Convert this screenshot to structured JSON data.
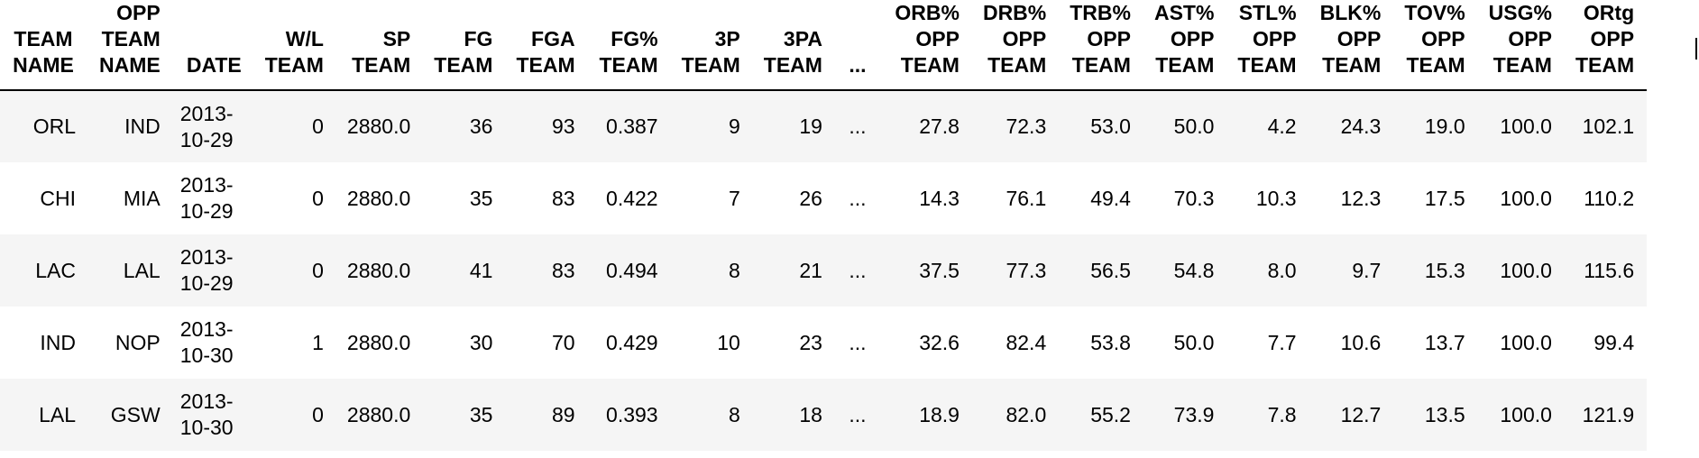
{
  "table": {
    "headers": [
      [
        "TEAM",
        "NAME"
      ],
      [
        "OPP",
        "TEAM",
        "NAME"
      ],
      [
        "DATE"
      ],
      [
        "W/L",
        "TEAM"
      ],
      [
        "SP",
        "TEAM"
      ],
      [
        "FG",
        "TEAM"
      ],
      [
        "FGA",
        "TEAM"
      ],
      [
        "FG%",
        "TEAM"
      ],
      [
        "3P",
        "TEAM"
      ],
      [
        "3PA",
        "TEAM"
      ],
      [
        "..."
      ],
      [
        "ORB%",
        "OPP",
        "TEAM"
      ],
      [
        "DRB%",
        "OPP",
        "TEAM"
      ],
      [
        "TRB%",
        "OPP",
        "TEAM"
      ],
      [
        "AST%",
        "OPP",
        "TEAM"
      ],
      [
        "STL%",
        "OPP",
        "TEAM"
      ],
      [
        "BLK%",
        "OPP",
        "TEAM"
      ],
      [
        "TOV%",
        "OPP",
        "TEAM"
      ],
      [
        "USG%",
        "OPP",
        "TEAM"
      ],
      [
        "ORtg",
        "OPP",
        "TEAM"
      ]
    ],
    "rows": [
      [
        "ORL",
        "IND",
        "2013-10-29",
        "0",
        "2880.0",
        "36",
        "93",
        "0.387",
        "9",
        "19",
        "...",
        "27.8",
        "72.3",
        "53.0",
        "50.0",
        "4.2",
        "24.3",
        "19.0",
        "100.0",
        "102.1"
      ],
      [
        "CHI",
        "MIA",
        "2013-10-29",
        "0",
        "2880.0",
        "35",
        "83",
        "0.422",
        "7",
        "26",
        "...",
        "14.3",
        "76.1",
        "49.4",
        "70.3",
        "10.3",
        "12.3",
        "17.5",
        "100.0",
        "110.2"
      ],
      [
        "LAC",
        "LAL",
        "2013-10-29",
        "0",
        "2880.0",
        "41",
        "83",
        "0.494",
        "8",
        "21",
        "...",
        "37.5",
        "77.3",
        "56.5",
        "54.8",
        "8.0",
        "9.7",
        "15.3",
        "100.0",
        "115.6"
      ],
      [
        "IND",
        "NOP",
        "2013-10-30",
        "1",
        "2880.0",
        "30",
        "70",
        "0.429",
        "10",
        "23",
        "...",
        "32.6",
        "82.4",
        "53.8",
        "50.0",
        "7.7",
        "10.6",
        "13.7",
        "100.0",
        "99.4"
      ],
      [
        "LAL",
        "GSW",
        "2013-10-30",
        "0",
        "2880.0",
        "35",
        "89",
        "0.393",
        "8",
        "18",
        "...",
        "18.9",
        "82.0",
        "55.2",
        "73.9",
        "7.8",
        "12.7",
        "13.5",
        "100.0",
        "121.9"
      ]
    ]
  },
  "colors": {
    "row_stripe": "#f5f5f5",
    "row_plain": "#ffffff",
    "text": "#000000"
  }
}
